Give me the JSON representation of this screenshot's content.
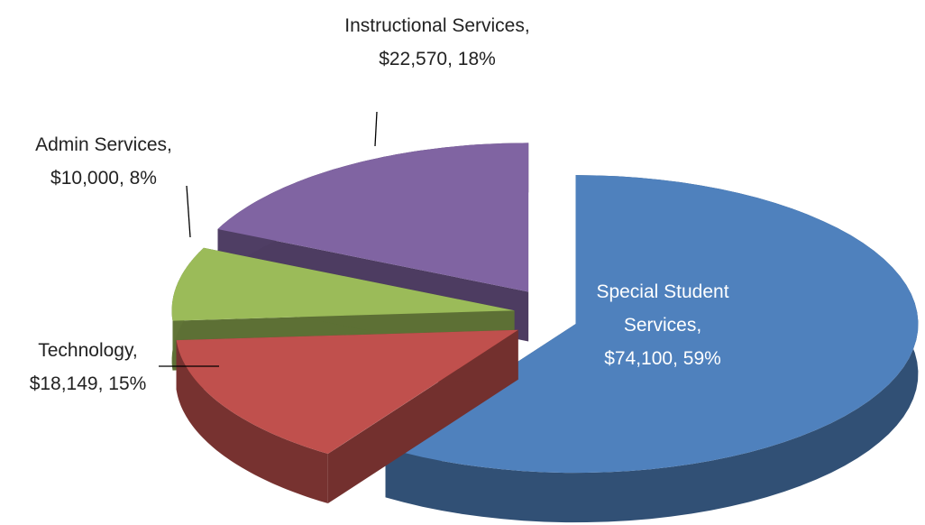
{
  "chart_data": {
    "type": "pie3d",
    "categories": [
      "Special Student Services",
      "Technology",
      "Admin Services",
      "Instructional Services"
    ],
    "values": [
      74100,
      18149,
      10000,
      22570
    ],
    "value_labels": [
      "$74,100, 59%",
      "$18,149, 15%",
      "$10,000, 8%",
      "$22,570, 18%"
    ],
    "colors": [
      "#4f81bd",
      "#c0504d",
      "#9bbb59",
      "#8064a2"
    ]
  }
}
